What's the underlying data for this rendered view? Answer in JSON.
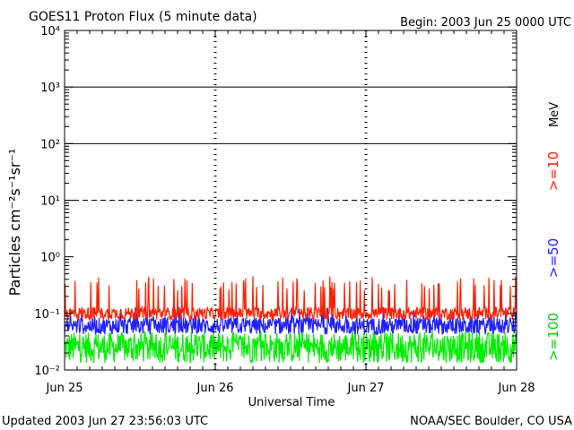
{
  "chart_data": {
    "type": "line",
    "title": "GOES11 Proton Flux (5 minute data)",
    "begin_text": "Begin: 2003 Jun 25 0000 UTC",
    "xlabel": "Universal Time",
    "ylabel": "Particles cm⁻²s⁻¹sr⁻¹",
    "y_scale": "log",
    "ylim": [
      0.01,
      10000
    ],
    "y_tick_labels": [
      "10⁻²",
      "10⁻¹",
      "10⁰",
      "10¹",
      "10²",
      "10³",
      "10⁴"
    ],
    "x_tick_labels": [
      "Jun 25",
      "Jun 26",
      "Jun 27",
      "Jun 28"
    ],
    "x_range_days": [
      0,
      3
    ],
    "threshold_lines": [
      {
        "value": 10,
        "style": "dashed"
      },
      {
        "value": 100,
        "style": "solid"
      },
      {
        "value": 1000,
        "style": "solid"
      }
    ],
    "unit_label": "MeV",
    "series": [
      {
        "name": ">=10",
        "color": "#ff2000",
        "typical_level": 0.1,
        "peak_level": 0.45
      },
      {
        "name": ">=50",
        "color": "#2020ff",
        "typical_level": 0.06,
        "peak_level": 0.13
      },
      {
        "name": ">=100",
        "color": "#00ee00",
        "typical_level": 0.025,
        "peak_level": 0.05
      }
    ],
    "grid": "vertical dashed lines at day boundaries",
    "footer_left": "Updated 2003 Jun 27 23:56:03 UTC",
    "footer_right": "NOAA/SEC Boulder, CO USA"
  }
}
